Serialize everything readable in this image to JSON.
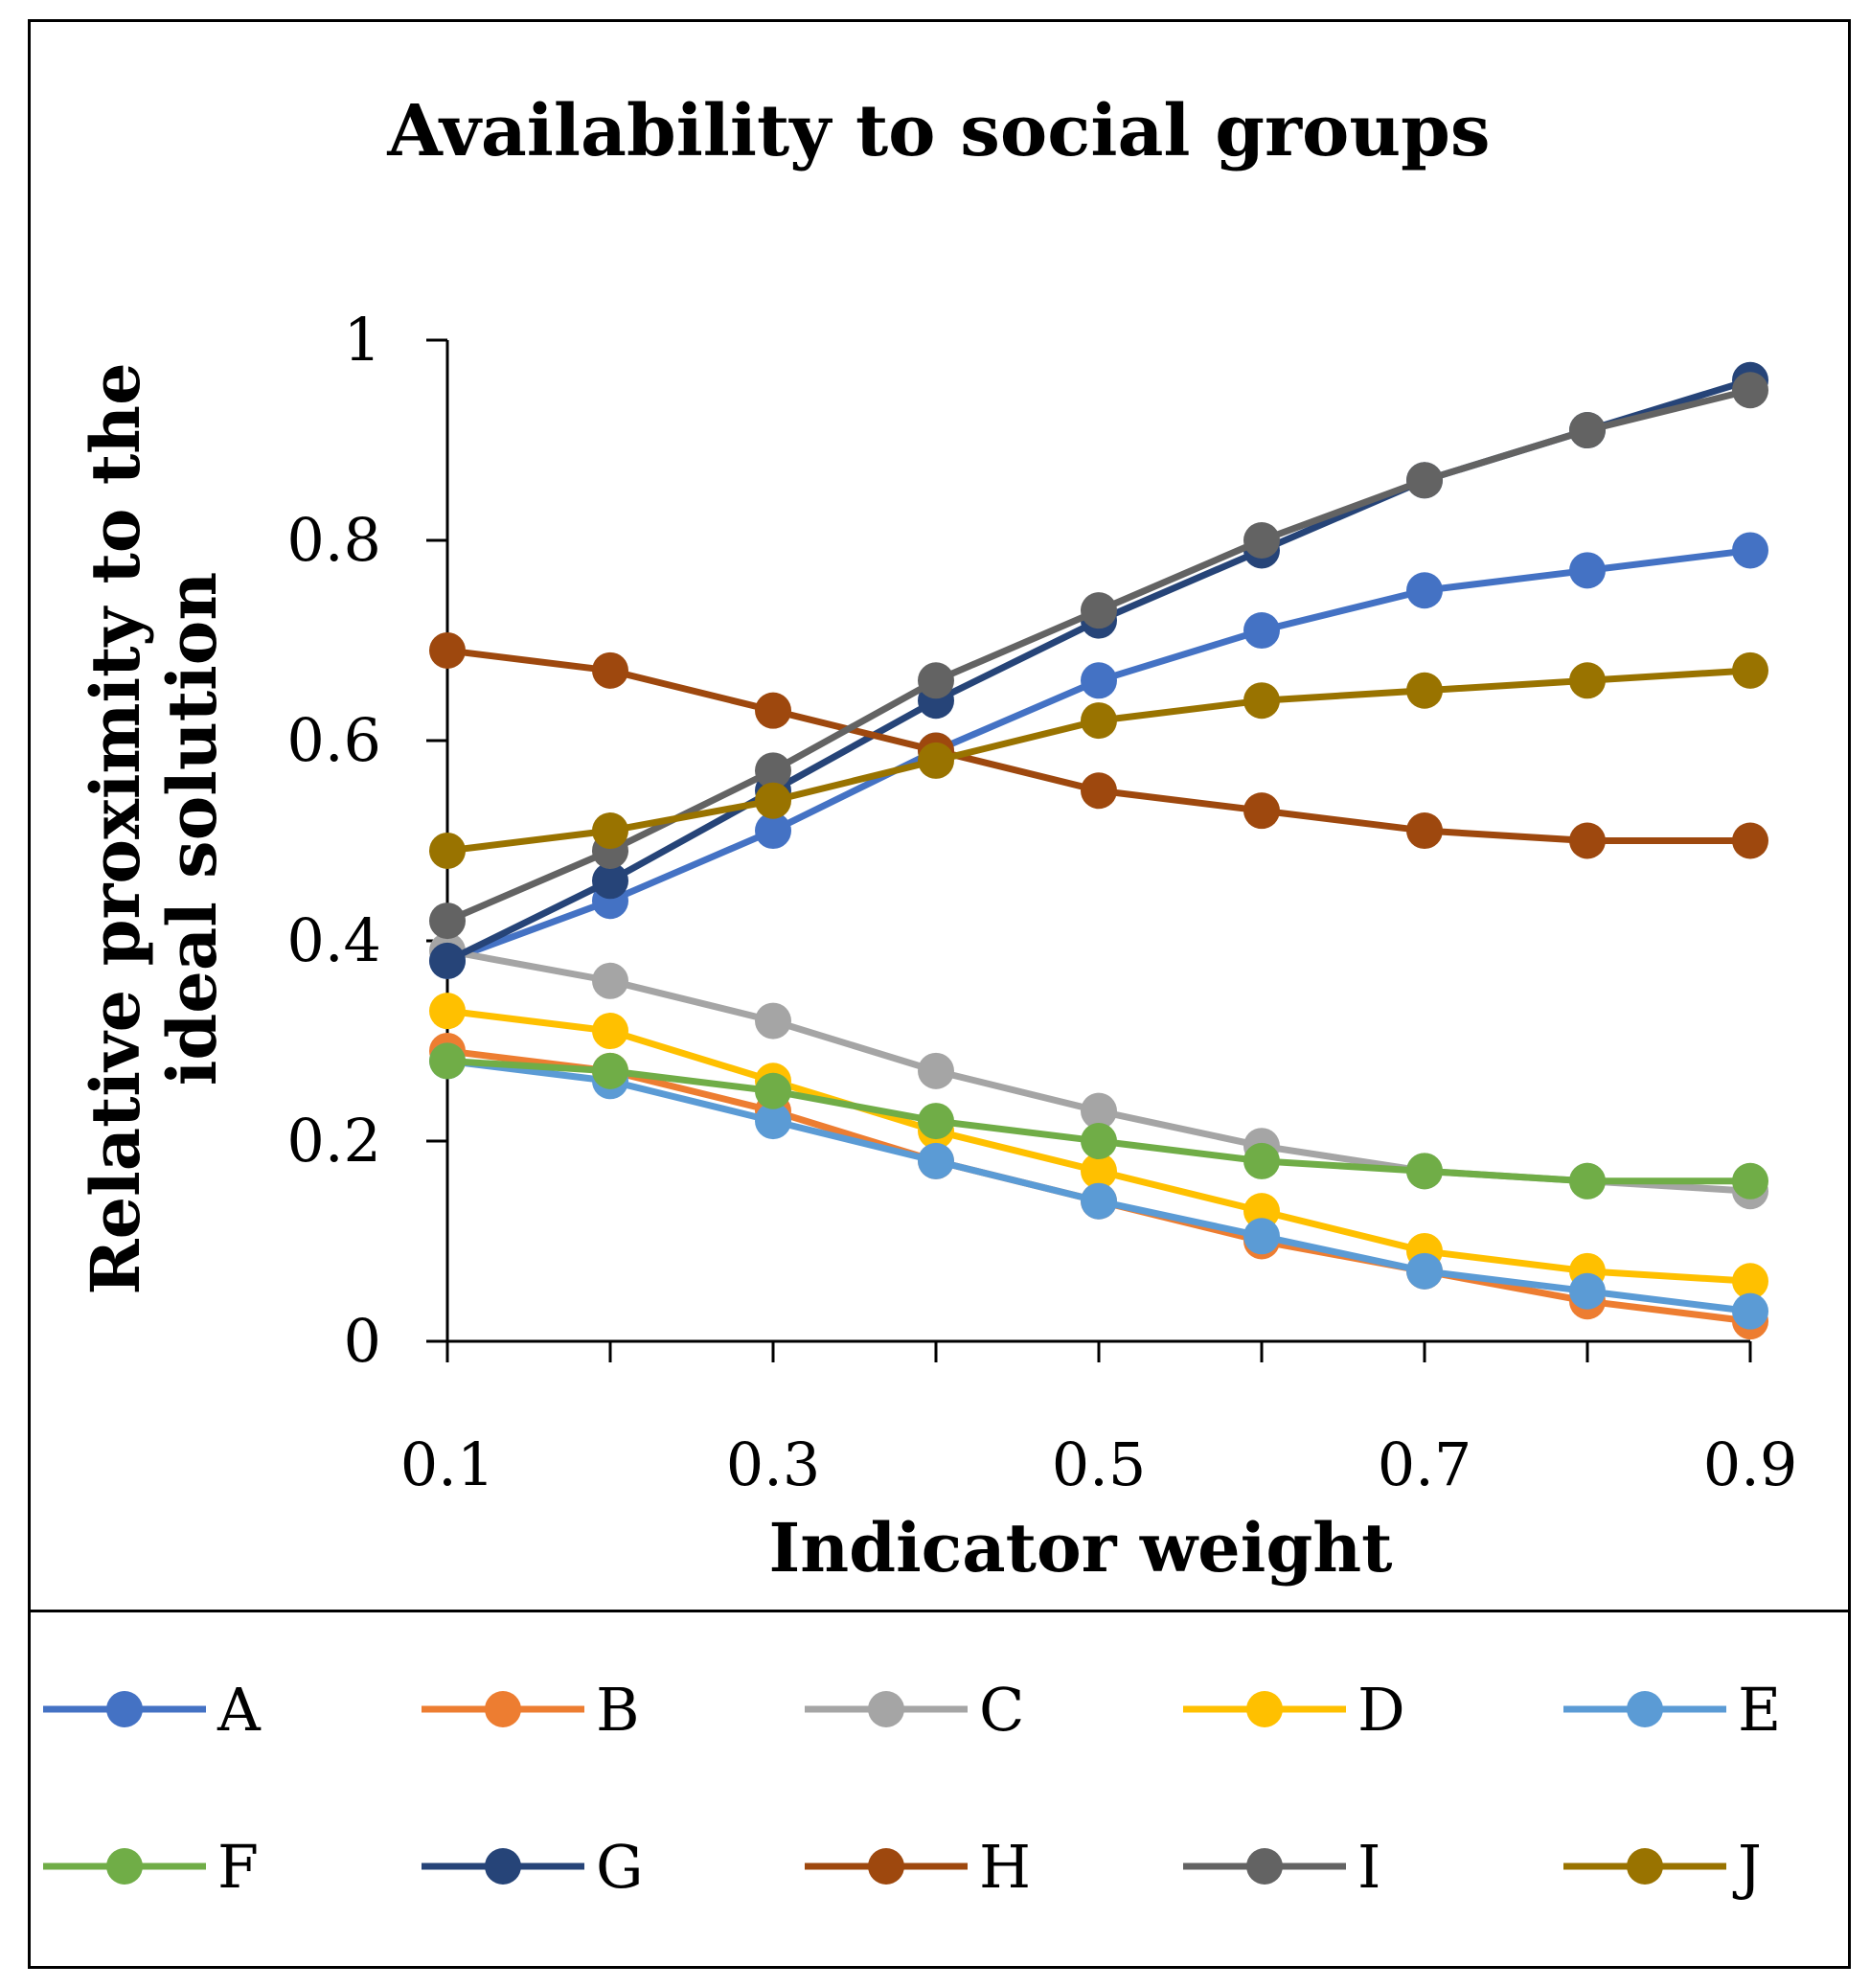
{
  "chart_data": {
    "type": "line",
    "title": "Availability to social groups",
    "xlabel": "Indicator weight",
    "ylabel": [
      "Relative proximity to the",
      "ideal solution"
    ],
    "x": [
      0.1,
      0.2,
      0.3,
      0.4,
      0.5,
      0.6,
      0.7,
      0.8,
      0.9
    ],
    "x_tick_labels": [
      "0.1",
      "0.3",
      "0.5",
      "0.7",
      "0.9"
    ],
    "x_tick_values": [
      0.1,
      0.3,
      0.5,
      0.7,
      0.9
    ],
    "y_tick_labels": [
      "0",
      "0.2",
      "0.4",
      "0.6",
      "0.8",
      "1"
    ],
    "y_tick_values": [
      0,
      0.2,
      0.4,
      0.6,
      0.8,
      1
    ],
    "xlim": [
      0.1,
      0.9
    ],
    "ylim": [
      0,
      1
    ],
    "grid": false,
    "legend_position": "bottom",
    "series": [
      {
        "name": "A",
        "color": "#4472C4",
        "values": [
          0.38,
          0.44,
          0.51,
          0.59,
          0.66,
          0.71,
          0.75,
          0.77,
          0.79
        ]
      },
      {
        "name": "B",
        "color": "#ED7D31",
        "values": [
          0.29,
          0.27,
          0.23,
          0.18,
          0.14,
          0.1,
          0.07,
          0.04,
          0.02
        ]
      },
      {
        "name": "C",
        "color": "#A5A5A5",
        "values": [
          0.39,
          0.36,
          0.32,
          0.27,
          0.23,
          0.195,
          0.17,
          0.16,
          0.15
        ]
      },
      {
        "name": "D",
        "color": "#FFC000",
        "values": [
          0.33,
          0.31,
          0.26,
          0.21,
          0.17,
          0.13,
          0.09,
          0.07,
          0.06
        ]
      },
      {
        "name": "E",
        "color": "#5B9BD5",
        "values": [
          0.28,
          0.26,
          0.22,
          0.18,
          0.14,
          0.105,
          0.07,
          0.05,
          0.03
        ]
      },
      {
        "name": "F",
        "color": "#70AD47",
        "values": [
          0.28,
          0.27,
          0.25,
          0.22,
          0.2,
          0.18,
          0.17,
          0.16,
          0.16
        ]
      },
      {
        "name": "G",
        "color": "#264478",
        "values": [
          0.38,
          0.46,
          0.55,
          0.64,
          0.72,
          0.79,
          0.86,
          0.91,
          0.96
        ]
      },
      {
        "name": "H",
        "color": "#9E480E",
        "values": [
          0.69,
          0.67,
          0.63,
          0.59,
          0.55,
          0.53,
          0.51,
          0.5,
          0.5
        ]
      },
      {
        "name": "I",
        "color": "#636363",
        "values": [
          0.42,
          0.49,
          0.57,
          0.66,
          0.73,
          0.8,
          0.86,
          0.91,
          0.95
        ]
      },
      {
        "name": "J",
        "color": "#997300",
        "values": [
          0.49,
          0.51,
          0.54,
          0.58,
          0.62,
          0.64,
          0.65,
          0.66,
          0.67
        ]
      }
    ]
  }
}
